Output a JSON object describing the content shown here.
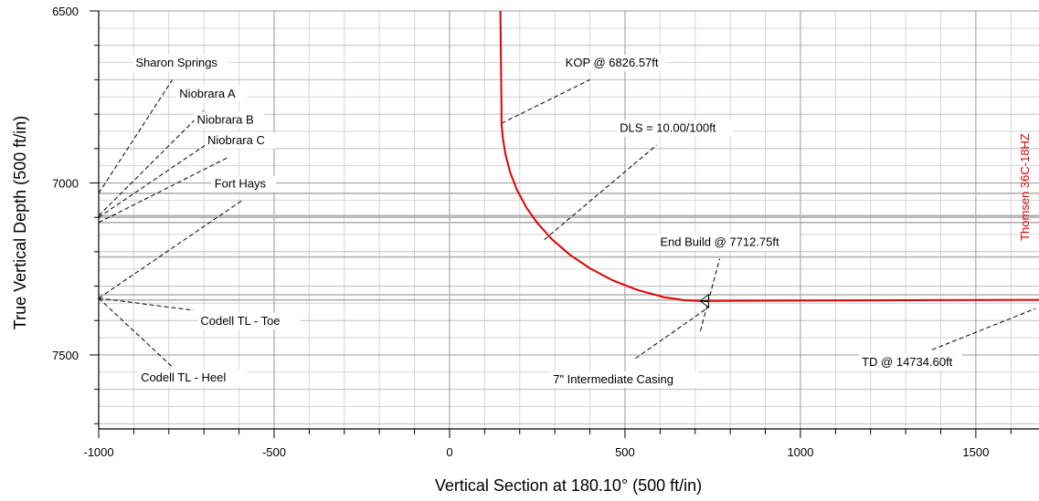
{
  "chart_data": {
    "type": "line",
    "xlabel": "Vertical Section at 180.10° (500 ft/in)",
    "ylabel": "True Vertical Depth (500 ft/in)",
    "xlim": [
      -1000,
      1680
    ],
    "ylim": [
      6500,
      7715
    ],
    "y_inverted": true,
    "grid": true,
    "x_ticks": [
      -1000,
      -500,
      0,
      500,
      1000,
      1500
    ],
    "y_ticks": [
      6500,
      7000,
      7500
    ],
    "well_name": "Thomsen 36C-18HZ",
    "colors": {
      "well_path": "#e00000",
      "grid": "#999999",
      "formation": "#b0b0b0"
    },
    "series": [
      {
        "name": "Thomsen 36C-18HZ",
        "points": [
          [
            145,
            6500
          ],
          [
            146,
            6600
          ],
          [
            147,
            6700
          ],
          [
            148,
            6780
          ],
          [
            148,
            6826.57
          ],
          [
            152,
            6870
          ],
          [
            160,
            6920
          ],
          [
            173,
            6970
          ],
          [
            192,
            7020
          ],
          [
            218,
            7070
          ],
          [
            250,
            7116
          ],
          [
            292,
            7164
          ],
          [
            342,
            7208
          ],
          [
            400,
            7248
          ],
          [
            465,
            7283
          ],
          [
            535,
            7311
          ],
          [
            610,
            7332
          ],
          [
            670,
            7341
          ],
          [
            715,
            7343
          ],
          [
            1000,
            7342
          ],
          [
            1300,
            7341
          ],
          [
            1680,
            7340
          ]
        ]
      }
    ],
    "formations": [
      {
        "name": "Sharon Springs",
        "tvd": 7030
      },
      {
        "name": "Niobrara A",
        "tvd": 7095
      },
      {
        "name": "Niobrara B",
        "tvd": 7100
      },
      {
        "name": "Niobrara C",
        "tvd": 7115
      },
      {
        "name": "Fort Hays",
        "tvd": 7215
      },
      {
        "name": "Codell TL - Toe",
        "tvd": 7325
      },
      {
        "name": "Codell TL - Heel",
        "tvd": 7340
      }
    ],
    "annotations": [
      {
        "text": "Sharon Springs",
        "x": -895,
        "y": 6662,
        "line": [
          [
            -1000,
            7030
          ],
          [
            -790,
            6700
          ]
        ]
      },
      {
        "text": "Niobrara A",
        "x": -770,
        "y": 6752,
        "line": [
          [
            -1000,
            7095
          ],
          [
            -700,
            6790
          ]
        ]
      },
      {
        "text": "Niobrara B",
        "x": -720,
        "y": 6827,
        "line": [
          [
            -1000,
            7100
          ],
          [
            -660,
            6865
          ]
        ]
      },
      {
        "text": "Niobrara C",
        "x": -690,
        "y": 6887,
        "line": [
          [
            -1000,
            7115
          ],
          [
            -630,
            6925
          ]
        ]
      },
      {
        "text": "Fort Hays",
        "x": -670,
        "y": 7013,
        "line": [
          [
            -1000,
            7335
          ],
          [
            -590,
            7050
          ]
        ]
      },
      {
        "text": "Codell TL - Toe",
        "x": -710,
        "y": 7412,
        "line": [
          [
            -1000,
            7335
          ],
          [
            -730,
            7370
          ]
        ]
      },
      {
        "text": "Codell TL - Heel",
        "x": -880,
        "y": 7577,
        "line": [
          [
            -1000,
            7335
          ],
          [
            -790,
            7535
          ]
        ]
      },
      {
        "text": "KOP @ 6826.57ft",
        "x": 330,
        "y": 6662,
        "line": [
          [
            148,
            6826.57
          ],
          [
            400,
            6700
          ]
        ]
      },
      {
        "text": "DLS = 10.00/100ft",
        "x": 485,
        "y": 6852,
        "line": [
          [
            270,
            7165
          ],
          [
            590,
            6890
          ]
        ]
      },
      {
        "text": "End Build @ 7712.75ft",
        "x": 600,
        "y": 7183,
        "line": [
          [
            715,
            7430
          ],
          [
            770,
            7220
          ]
        ]
      },
      {
        "text": "7\" Intermediate Casing",
        "x": 295,
        "y": 7582,
        "line": [
          [
            530,
            7510
          ],
          [
            740,
            7360
          ]
        ]
      },
      {
        "text": "TD @ 14734.60ft",
        "x": 1175,
        "y": 7532,
        "line": [
          [
            1375,
            7485
          ],
          [
            1670,
            7365
          ]
        ]
      }
    ],
    "casing_point": {
      "label": "7\" Intermediate Casing",
      "x": 715,
      "y": 7343
    }
  }
}
